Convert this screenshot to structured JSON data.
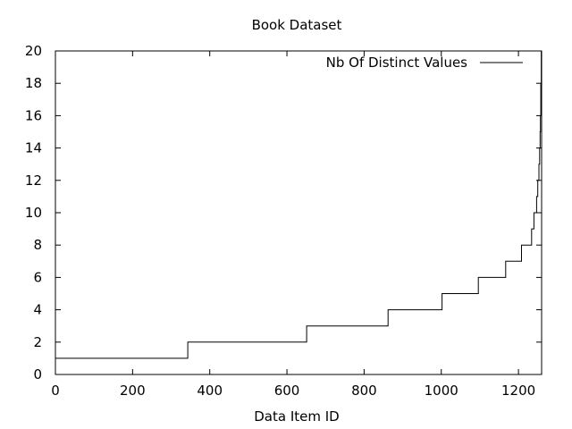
{
  "chart_data": {
    "type": "line",
    "title": "Book Dataset",
    "xlabel": "Data Item ID",
    "ylabel": "",
    "xlim": [
      0,
      1260
    ],
    "ylim": [
      0,
      20
    ],
    "xticks": [
      0,
      200,
      400,
      600,
      800,
      1000,
      1200
    ],
    "yticks": [
      0,
      2,
      4,
      6,
      8,
      10,
      12,
      14,
      16,
      18,
      20
    ],
    "grid": false,
    "legend_position": "top-right",
    "series": [
      {
        "name": "Nb Of Distinct Values",
        "color": "#000000",
        "step": "post",
        "x": [
          0,
          343,
          343,
          651,
          651,
          862,
          862,
          1002,
          1002,
          1096,
          1096,
          1167,
          1167,
          1208,
          1208,
          1234,
          1234,
          1240,
          1240,
          1247,
          1247,
          1250,
          1250,
          1253,
          1253,
          1255,
          1255,
          1256,
          1256,
          1257,
          1257,
          1258,
          1258,
          1259,
          1259,
          1260
        ],
        "y": [
          1,
          1,
          2,
          2,
          3,
          3,
          4,
          4,
          5,
          5,
          6,
          6,
          7,
          7,
          8,
          8,
          9,
          9,
          10,
          10,
          11,
          11,
          12,
          12,
          13,
          13,
          14,
          14,
          15,
          15,
          16,
          16,
          18,
          18,
          20,
          20
        ]
      }
    ]
  }
}
